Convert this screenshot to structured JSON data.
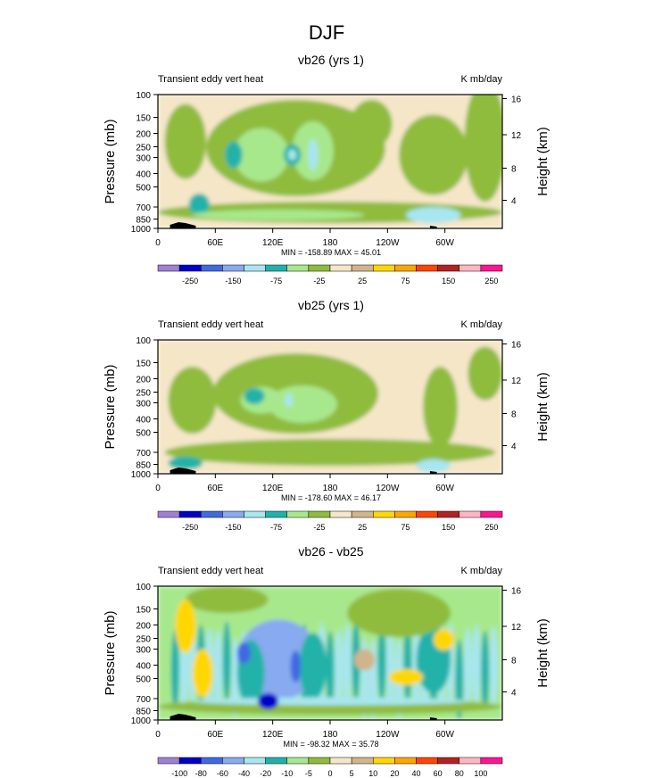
{
  "figure_title": "DJF",
  "chart_data": [
    {
      "type": "heatmap",
      "title": "vb26 (yrs 1)",
      "left_label": "Transient eddy vert heat",
      "right_label": "K mb/day",
      "ylabel": "Pressure (mb)",
      "y2label": "Height (km)",
      "xticks": [
        "0",
        "60E",
        "120E",
        "180",
        "120W",
        "60W"
      ],
      "yticks": [
        "100",
        "150",
        "200",
        "250",
        "300",
        "400",
        "500",
        "700",
        "850",
        "1000"
      ],
      "y2ticks": [
        "4",
        "8",
        "12",
        "16"
      ],
      "stats": "MIN = -158.89  MAX =  45.01",
      "colorbar": {
        "labels": [
          "-250",
          "-150",
          "-75",
          "-25",
          "25",
          "75",
          "150",
          "250"
        ],
        "colors": [
          "#a07fd6",
          "#0000c8",
          "#4169e1",
          "#87aaf0",
          "#a8e6f0",
          "#20b2aa",
          "#a8e88c",
          "#8fbc3c",
          "#f5e6c8",
          "#d2b48c",
          "#ffd700",
          "#ffa500",
          "#ff4500",
          "#b22222",
          "#ffb6c1",
          "#ff1493"
        ]
      }
    },
    {
      "type": "heatmap",
      "title": "vb25 (yrs 1)",
      "left_label": "Transient eddy vert heat",
      "right_label": "K mb/day",
      "ylabel": "Pressure (mb)",
      "y2label": "Height (km)",
      "xticks": [
        "0",
        "60E",
        "120E",
        "180",
        "120W",
        "60W"
      ],
      "yticks": [
        "100",
        "150",
        "200",
        "250",
        "300",
        "400",
        "500",
        "700",
        "850",
        "1000"
      ],
      "y2ticks": [
        "4",
        "8",
        "12",
        "16"
      ],
      "stats": "MIN = -178.60  MAX =  46.17",
      "colorbar": {
        "labels": [
          "-250",
          "-150",
          "-75",
          "-25",
          "25",
          "75",
          "150",
          "250"
        ],
        "colors": [
          "#a07fd6",
          "#0000c8",
          "#4169e1",
          "#87aaf0",
          "#a8e6f0",
          "#20b2aa",
          "#a8e88c",
          "#8fbc3c",
          "#f5e6c8",
          "#d2b48c",
          "#ffd700",
          "#ffa500",
          "#ff4500",
          "#b22222",
          "#ffb6c1",
          "#ff1493"
        ]
      }
    },
    {
      "type": "heatmap",
      "title": "vb26 - vb25",
      "left_label": "Transient eddy vert heat",
      "right_label": "K mb/day",
      "ylabel": "Pressure (mb)",
      "y2label": "Height (km)",
      "xticks": [
        "0",
        "60E",
        "120E",
        "180",
        "120W",
        "60W"
      ],
      "yticks": [
        "100",
        "150",
        "200",
        "250",
        "300",
        "400",
        "500",
        "700",
        "850",
        "1000"
      ],
      "y2ticks": [
        "4",
        "8",
        "12",
        "16"
      ],
      "stats": "MIN = -98.32  MAX =  35.78",
      "colorbar": {
        "labels": [
          "-100",
          "-80",
          "-60",
          "-40",
          "-20",
          "-10",
          "-5",
          "0",
          "5",
          "10",
          "20",
          "40",
          "60",
          "80",
          "100"
        ],
        "colors": [
          "#a07fd6",
          "#0000c8",
          "#4169e1",
          "#87aaf0",
          "#a8e6f0",
          "#20b2aa",
          "#a8e88c",
          "#8fbc3c",
          "#f5e6c8",
          "#d2b48c",
          "#ffd700",
          "#ffa500",
          "#ff4500",
          "#b22222",
          "#ffb6c1",
          "#ff1493"
        ]
      }
    }
  ]
}
